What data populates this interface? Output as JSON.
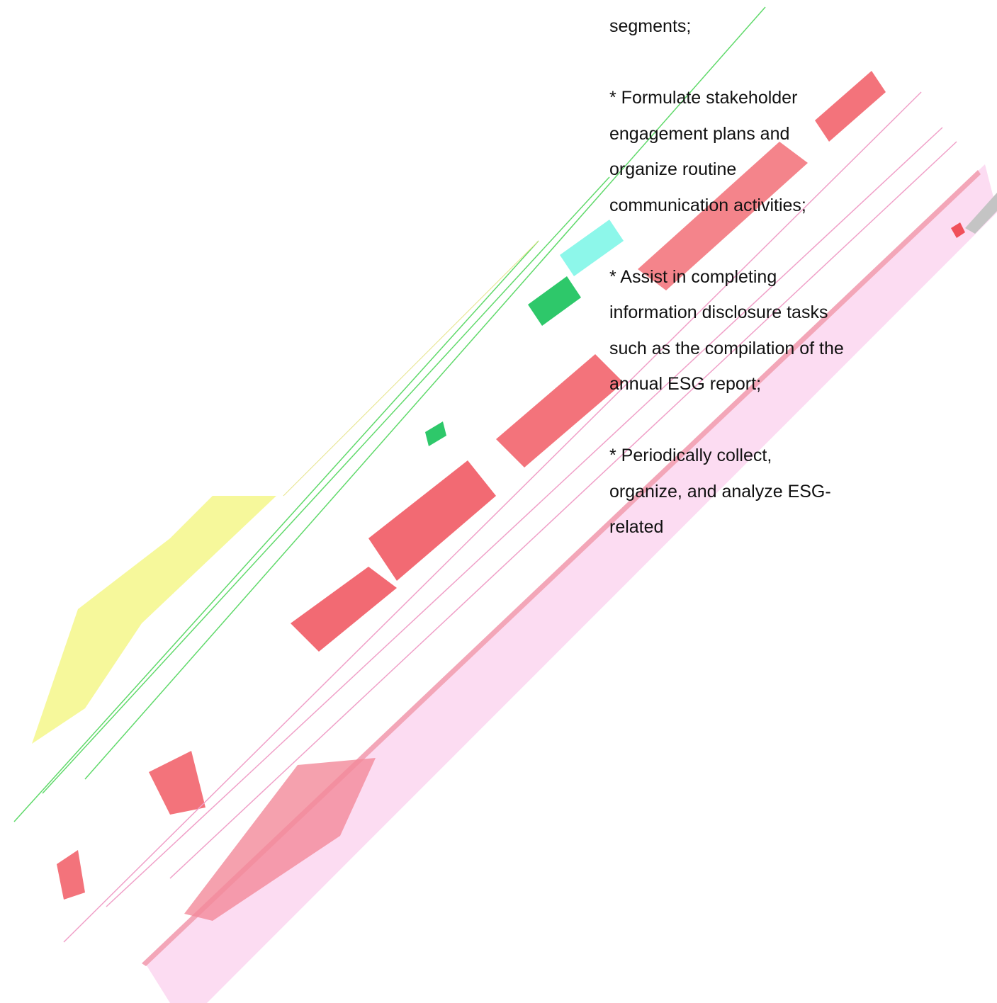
{
  "paragraphs": [
    "segments;",
    "* Formulate stakeholder engagement plans and organize routine communication activities;",
    "* Assist in completing information disclosure tasks such as the compilation of the annual ESG report;",
    "* Periodically collect, organize, and analyze ESG-related"
  ]
}
